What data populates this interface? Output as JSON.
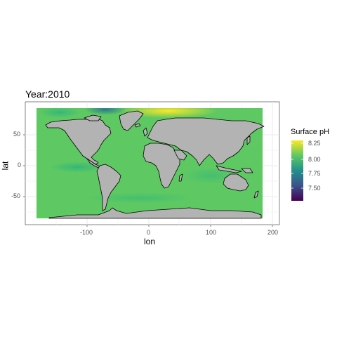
{
  "title": "Year:2010",
  "x_axis": {
    "label": "lon",
    "ticks": [
      "-100",
      "0",
      "100",
      "200"
    ],
    "tick_values": [
      -100,
      0,
      100,
      200
    ]
  },
  "y_axis": {
    "label": "lat",
    "ticks": [
      "50",
      "0",
      "-50"
    ],
    "tick_values": [
      50,
      0,
      -50
    ]
  },
  "legend": {
    "title": "Surface pH",
    "ticks": [
      "8.25",
      "8.00",
      "7.75",
      "7.50"
    ],
    "tick_values": [
      8.25,
      8.0,
      7.75,
      7.5
    ],
    "range": [
      7.32,
      8.28
    ],
    "palette": [
      "#440154",
      "#3b528b",
      "#21908c",
      "#5dc863",
      "#fde725"
    ]
  },
  "chart_data": {
    "type": "heatmap",
    "title": "Year:2010",
    "xlabel": "lon",
    "ylabel": "lat",
    "xlim": [
      -180,
      180
    ],
    "ylim": [
      -90,
      90
    ],
    "grid": true,
    "theme": "bw",
    "legend_position": "right",
    "land_color": "#b3b3b3",
    "ocean_base_value": 8.07,
    "features": [
      {
        "name": "arctic-north-atlantic-high",
        "lon": 30,
        "lat": 80,
        "value": 8.2
      },
      {
        "name": "arctic-greenland-low",
        "lon": -70,
        "lat": 82,
        "value": 7.85
      },
      {
        "name": "beaufort-low",
        "lon": -140,
        "lat": 75,
        "value": 7.95
      },
      {
        "name": "eastern-pacific-upwelling",
        "lon": -95,
        "lat": -5,
        "value": 8.0
      }
    ]
  }
}
